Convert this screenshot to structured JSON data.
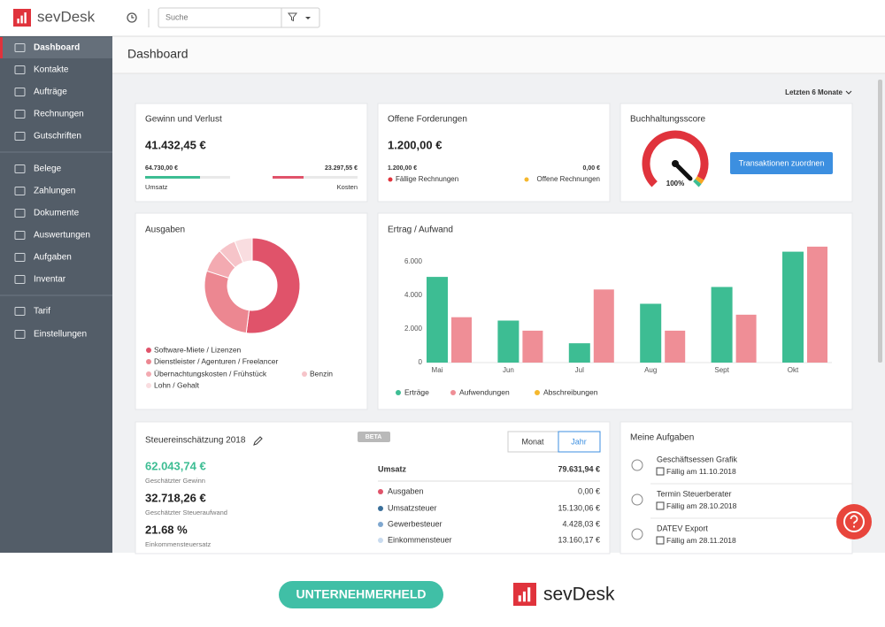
{
  "app": {
    "logo": "sevDesk",
    "search_placeholder": "Suche"
  },
  "sidebar": [
    "Dashboard",
    "Kontakte",
    "Aufträge",
    "Rechnungen",
    "Gutschriften",
    "Belege",
    "Zahlungen",
    "Dokumente",
    "Auswertungen",
    "Aufgaben",
    "Inventar",
    "Tarif",
    "Einstellungen"
  ],
  "page_title": "Dashboard",
  "period": "Letzten 6 Monate",
  "profit": {
    "title": "Gewinn und Verlust",
    "amount": "41.432,45 €",
    "revenue": {
      "value": "64.730,00 €",
      "label": "Umsatz"
    },
    "costs": {
      "value": "23.297,55 €",
      "label": "Kosten"
    }
  },
  "receivables": {
    "title": "Offene Forderungen",
    "amount": "1.200,00 €",
    "due": {
      "value": "1.200,00 €",
      "label": "Fällige Rechnungen"
    },
    "open": {
      "value": "0,00 €",
      "label": "Offene Rechnungen"
    }
  },
  "score": {
    "title": "Buchhaltungsscore",
    "value": 100,
    "value_label": "100%",
    "button": "Transaktionen zuordnen"
  },
  "chart_data": [
    {
      "type": "pie",
      "title": "Ausgaben",
      "categories": [
        "Software-Miete / Lizenzen",
        "Dienstleister / Agenturen / Freelancer",
        "Übernachtungskosten / Frühstück",
        "Benzin",
        "Lohn / Gehalt"
      ],
      "values": [
        52,
        28,
        8,
        6,
        6
      ],
      "colors": [
        "#e0536a",
        "#ec8791",
        "#f3aab1",
        "#f6c4c9",
        "#f9dde0"
      ]
    },
    {
      "type": "bar",
      "title": "Ertrag / Aufwand",
      "categories": [
        "Mai",
        "Jun",
        "Jul",
        "Aug",
        "Sept",
        "Okt"
      ],
      "series": [
        {
          "name": "Erträge",
          "color": "#3dbd93",
          "values": [
            5100,
            2500,
            1150,
            3500,
            4500,
            6600
          ]
        },
        {
          "name": "Aufwendungen",
          "color": "#ef8e96",
          "values": [
            2700,
            1900,
            4350,
            1900,
            2850,
            6900
          ]
        },
        {
          "name": "Abschreibungen",
          "color": "#f5b82e",
          "values": [
            0,
            0,
            0,
            0,
            0,
            0
          ]
        }
      ],
      "ylim": [
        0,
        7000
      ],
      "yticks": [
        0,
        {
          "value": 2000,
          "label": "2.000"
        },
        {
          "value": 4000,
          "label": "4.000"
        },
        {
          "value": 6000,
          "label": "6.000"
        }
      ],
      "grid": false
    }
  ],
  "tax": {
    "title": "Steuereinschätzung 2018",
    "badge": "BETA",
    "toggle": [
      "Monat",
      "Jahr"
    ],
    "figures": [
      {
        "value": "62.043,74 €",
        "label": "Geschätzter Gewinn"
      },
      {
        "value": "32.718,26 €",
        "label": "Geschätzter Steueraufwand"
      },
      {
        "value": "21.68 %",
        "label": "Einkommensteuersatz"
      }
    ],
    "header": {
      "label": "Umsatz",
      "value": "79.631,94 €"
    },
    "rows": [
      {
        "label": "Ausgaben",
        "value": "0,00 €"
      },
      {
        "label": "Umsatzsteuer",
        "value": "15.130,06 €"
      },
      {
        "label": "Gewerbesteuer",
        "value": "4.428,03 €"
      },
      {
        "label": "Einkommensteuer",
        "value": "13.160,17 €"
      }
    ]
  },
  "tasks": {
    "title": "Meine Aufgaben",
    "items": [
      {
        "title": "Geschäftsessen Grafik",
        "due": "Fällig am 11.10.2018"
      },
      {
        "title": "Termin Steuerberater",
        "due": "Fällig am 28.10.2018"
      },
      {
        "title": "DATEV Export",
        "due": "Fällig am 28.11.2018"
      }
    ]
  },
  "footer": {
    "badge": "UNTERNEHMERHELD",
    "logo": "sevDesk"
  }
}
